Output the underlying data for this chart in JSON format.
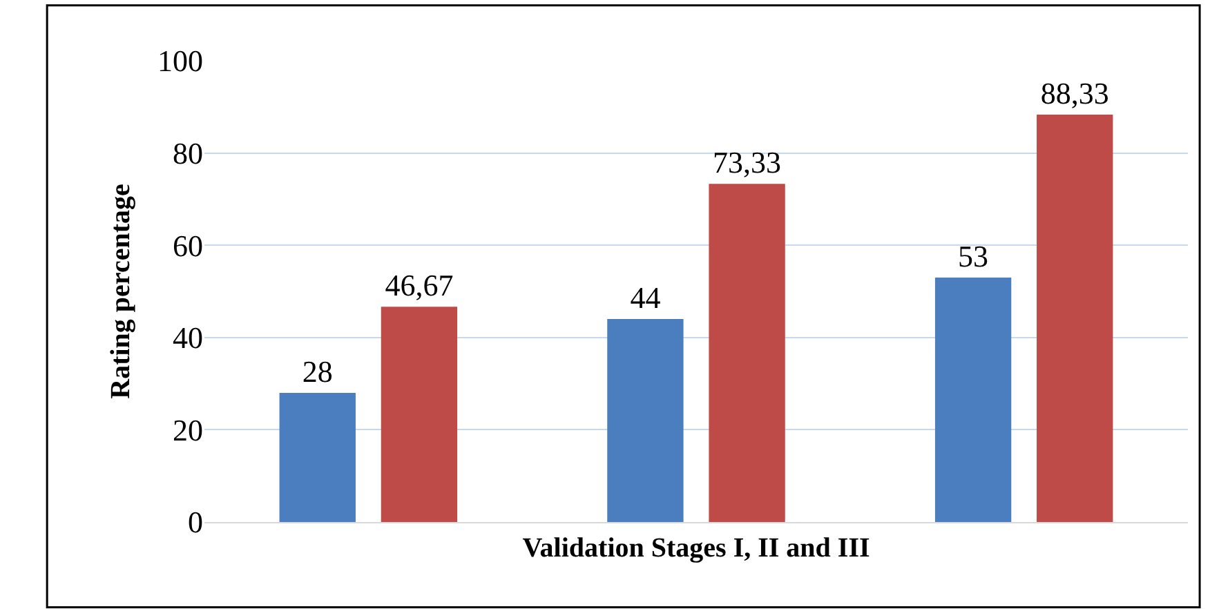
{
  "chart_data": {
    "type": "bar",
    "xlabel": "Validation Stages I, II and III",
    "ylabel": "Rating percentage",
    "categories": [
      null,
      null,
      null
    ],
    "series": [
      {
        "color": "#4a7ebf",
        "values": [
          28,
          44,
          53
        ],
        "value_labels": [
          "28",
          "44",
          "53"
        ]
      },
      {
        "color": "#be4b48",
        "values": [
          46.67,
          73.33,
          88.33
        ],
        "value_labels": [
          "46,67",
          "73,33",
          "88,33"
        ]
      }
    ],
    "ylim": [
      0,
      100
    ],
    "yticks": [
      0,
      20,
      40,
      60,
      80,
      100
    ],
    "grid": "y"
  }
}
